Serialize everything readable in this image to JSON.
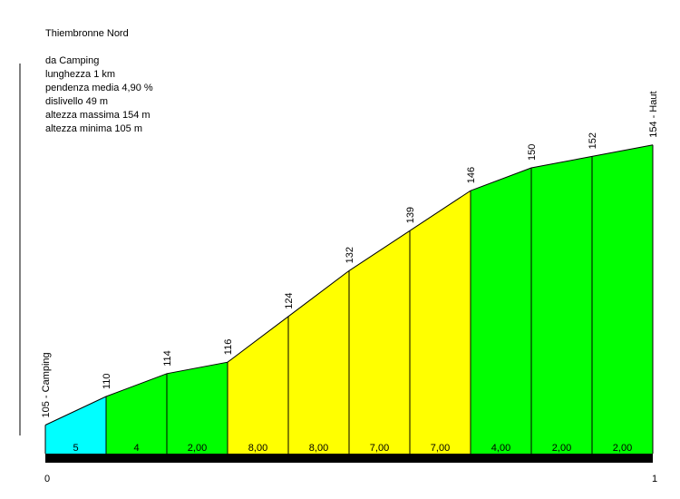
{
  "info": {
    "title": "Thiembronne Nord",
    "start": "da Camping",
    "length": "lunghezza 1 km",
    "avg_gradient": "pendenza media 4,90 %",
    "elevation_gain": "dislivello 49 m",
    "max_altitude": "altezza massima 154 m",
    "min_altitude": "altezza minima 105 m"
  },
  "chart_data": {
    "type": "area",
    "x_unit": "km",
    "xlim": [
      0,
      1
    ],
    "x_tick_labels": [
      "0",
      "1"
    ],
    "ylim": [
      100,
      160
    ],
    "x": [
      0,
      0.1,
      0.2,
      0.3,
      0.4,
      0.5,
      0.6,
      0.7,
      0.8,
      0.9,
      1.0
    ],
    "elevations": [
      105,
      110,
      114,
      116,
      124,
      132,
      139,
      146,
      150,
      152,
      154
    ],
    "point_labels": [
      "105 - Camping",
      "110",
      "114",
      "116",
      "124",
      "132",
      "139",
      "146",
      "150",
      "152",
      "154 - Haut"
    ],
    "segment_gradients": [
      "5",
      "4",
      "2,00",
      "8,00",
      "8,00",
      "7,00",
      "7,00",
      "4,00",
      "2,00",
      "2,00"
    ],
    "segment_colors": [
      "#00ffff",
      "#00ff00",
      "#00ff00",
      "#ffff00",
      "#ffff00",
      "#ffff00",
      "#ffff00",
      "#00ff00",
      "#00ff00",
      "#00ff00"
    ]
  }
}
